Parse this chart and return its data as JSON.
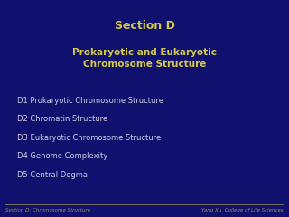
{
  "background_color": "#10116e",
  "title_line1": "Section D",
  "title_line2": "Prokaryotic and Eukaryotic\nChromosome Structure",
  "title_color": "#d4c84a",
  "title_line1_fontsize": 9,
  "title_line2_fontsize": 7.5,
  "bullet_items": [
    "D1 Prokaryotic Chromosome Structure",
    "D2 Chromatin Structure",
    "D3 Eukaryotic Chromosome Structure",
    "D4 Genome Complexity",
    "D5 Central Dogma"
  ],
  "bullet_color": "#ccccdd",
  "bullet_fontsize": 6.0,
  "footer_left": "Section D: Chromosome Structure",
  "footer_right": "Yang Xu, College of Life Sciences",
  "footer_color": "#a09050",
  "footer_fontsize": 4.0,
  "divider_color": "#a09050"
}
